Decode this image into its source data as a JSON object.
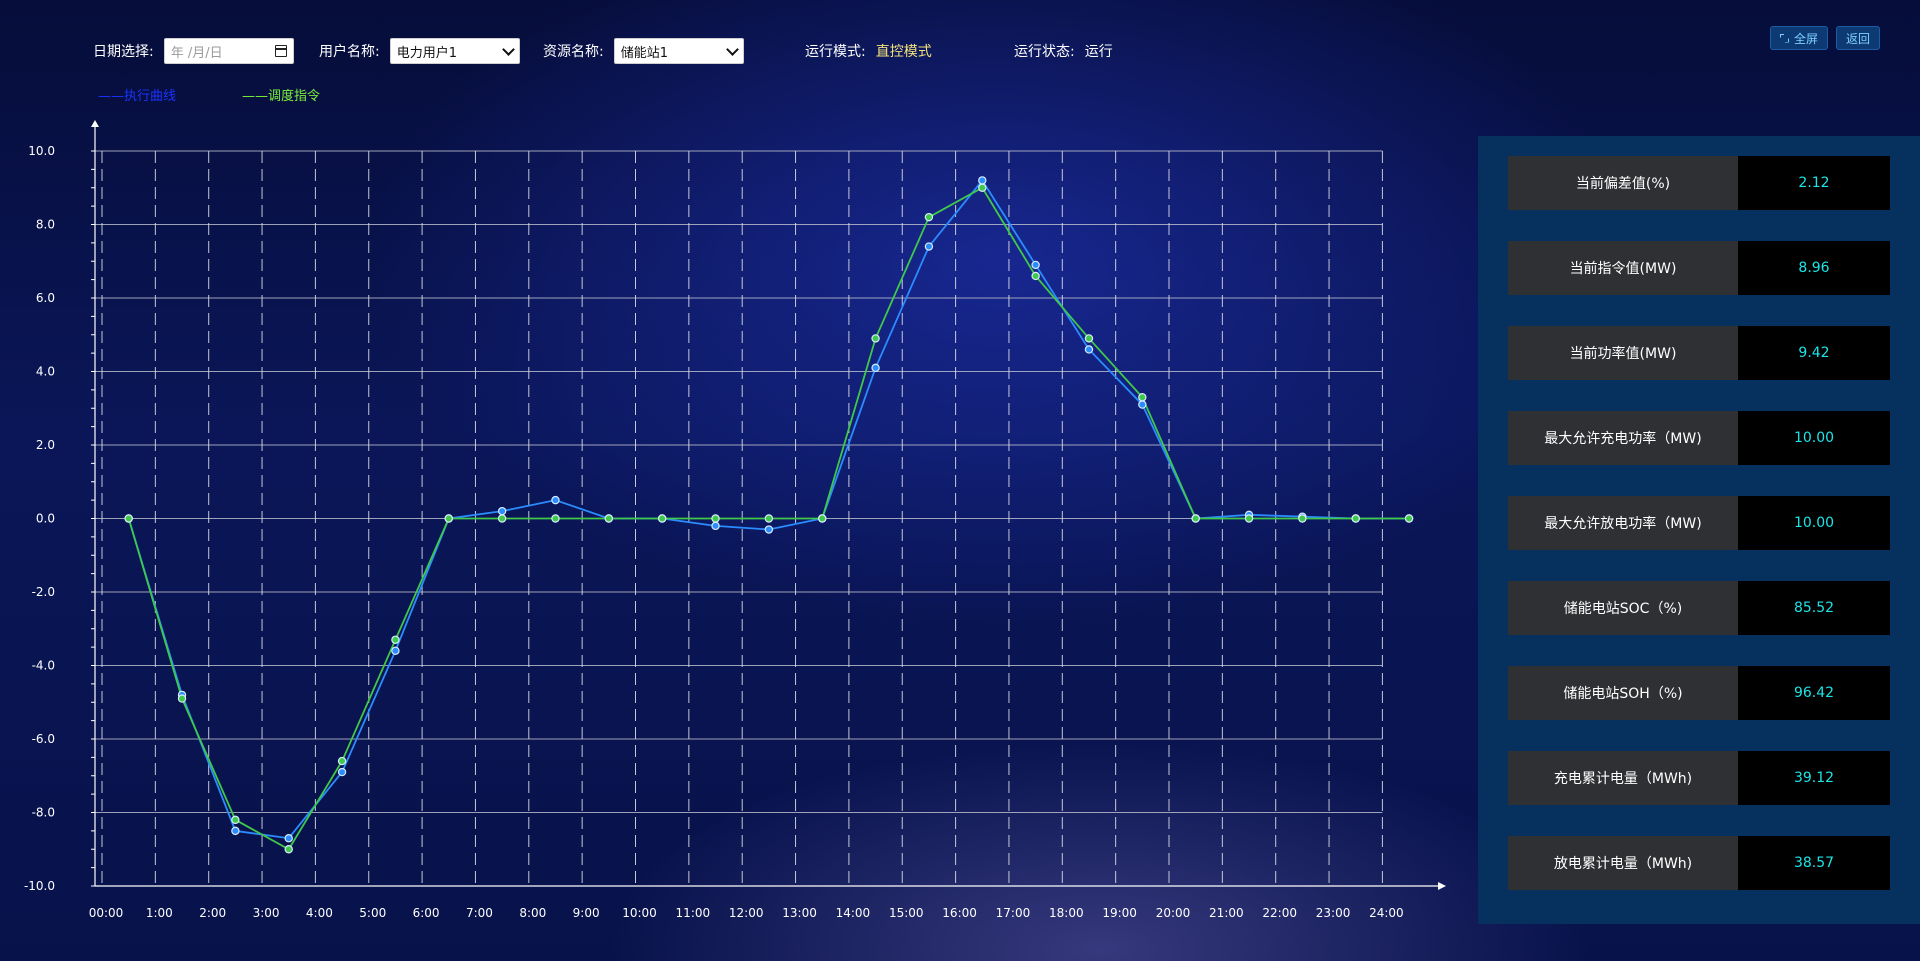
{
  "toolbar": {
    "date_label": "日期选择:",
    "date_placeholder": "年 /月/日",
    "user_label": "用户名称:",
    "user_value": "电力用户1",
    "resource_label": "资源名称:",
    "resource_value": "储能站1",
    "mode_label": "运行模式:",
    "mode_value": "直控模式",
    "status_label": "运行状态:",
    "status_value": "运行",
    "fullscreen_label": "全屏",
    "back_label": "返回"
  },
  "legend": {
    "exec": {
      "label": "——执行曲线",
      "color": "#1a33ff"
    },
    "dispatch": {
      "label": "——调度指令",
      "color": "#7cf13a"
    }
  },
  "chart_data": {
    "type": "line",
    "x": [
      "00:00",
      "1:00",
      "2:00",
      "3:00",
      "4:00",
      "5:00",
      "6:00",
      "7:00",
      "8:00",
      "9:00",
      "10:00",
      "11:00",
      "12:00",
      "13:00",
      "14:00",
      "15:00",
      "16:00",
      "17:00",
      "18:00",
      "19:00",
      "20:00",
      "21:00",
      "22:00",
      "23:00",
      "24:00"
    ],
    "y_ticks": [
      "10.0",
      "8.0",
      "6.0",
      "4.0",
      "2.0",
      "0.0",
      "-2.0",
      "-4.0",
      "-6.0",
      "-8.0",
      "-10.0"
    ],
    "ylim": [
      -10,
      10
    ],
    "grid": true,
    "series": [
      {
        "name": "执行曲线",
        "color": "#2b8cff",
        "x": [
          0.5,
          1.5,
          2.5,
          3.5,
          4.5,
          5.5,
          6.5,
          7.5,
          8.5,
          9.5,
          10.5,
          11.5,
          12.5,
          13.5,
          14.5,
          15.5,
          16.5,
          17.5,
          18.5,
          19.5,
          20.5,
          21.5,
          22.5,
          23.5,
          24.5
        ],
        "values": [
          0.0,
          -4.8,
          -8.5,
          -8.7,
          -6.9,
          -3.6,
          0.0,
          0.2,
          0.5,
          0.0,
          0.0,
          -0.2,
          -0.3,
          0.0,
          4.1,
          7.4,
          9.2,
          6.9,
          4.6,
          3.1,
          0.0,
          0.1,
          0.05,
          0.0,
          0.0
        ]
      },
      {
        "name": "调度指令",
        "color": "#3fc84a",
        "x": [
          0.5,
          1.5,
          2.5,
          3.5,
          4.5,
          5.5,
          6.5,
          7.5,
          8.5,
          9.5,
          10.5,
          11.5,
          12.5,
          13.5,
          14.5,
          15.5,
          16.5,
          17.5,
          18.5,
          19.5,
          20.5,
          21.5,
          22.5,
          23.5,
          24.5
        ],
        "values": [
          0.0,
          -4.9,
          -8.2,
          -9.0,
          -6.6,
          -3.3,
          0.0,
          0.0,
          0.0,
          0.0,
          0.0,
          0.0,
          0.0,
          0.0,
          4.9,
          8.2,
          9.0,
          6.6,
          4.9,
          3.3,
          0.0,
          0.0,
          0.0,
          0.0,
          0.0
        ]
      }
    ]
  },
  "metrics": [
    {
      "label": "当前偏差值(%)",
      "value": "2.12"
    },
    {
      "label": "当前指令值(MW)",
      "value": "8.96"
    },
    {
      "label": "当前功率值(MW)",
      "value": "9.42"
    },
    {
      "label": "最大允许充电功率（MW)",
      "value": "10.00"
    },
    {
      "label": "最大允许放电功率（MW)",
      "value": "10.00"
    },
    {
      "label": "储能电站SOC（%)",
      "value": "85.52"
    },
    {
      "label": "储能电站SOH（%)",
      "value": "96.42"
    },
    {
      "label": "充电累计电量（MWh)",
      "value": "39.12"
    },
    {
      "label": "放电累计电量（MWh)",
      "value": "38.57"
    }
  ]
}
